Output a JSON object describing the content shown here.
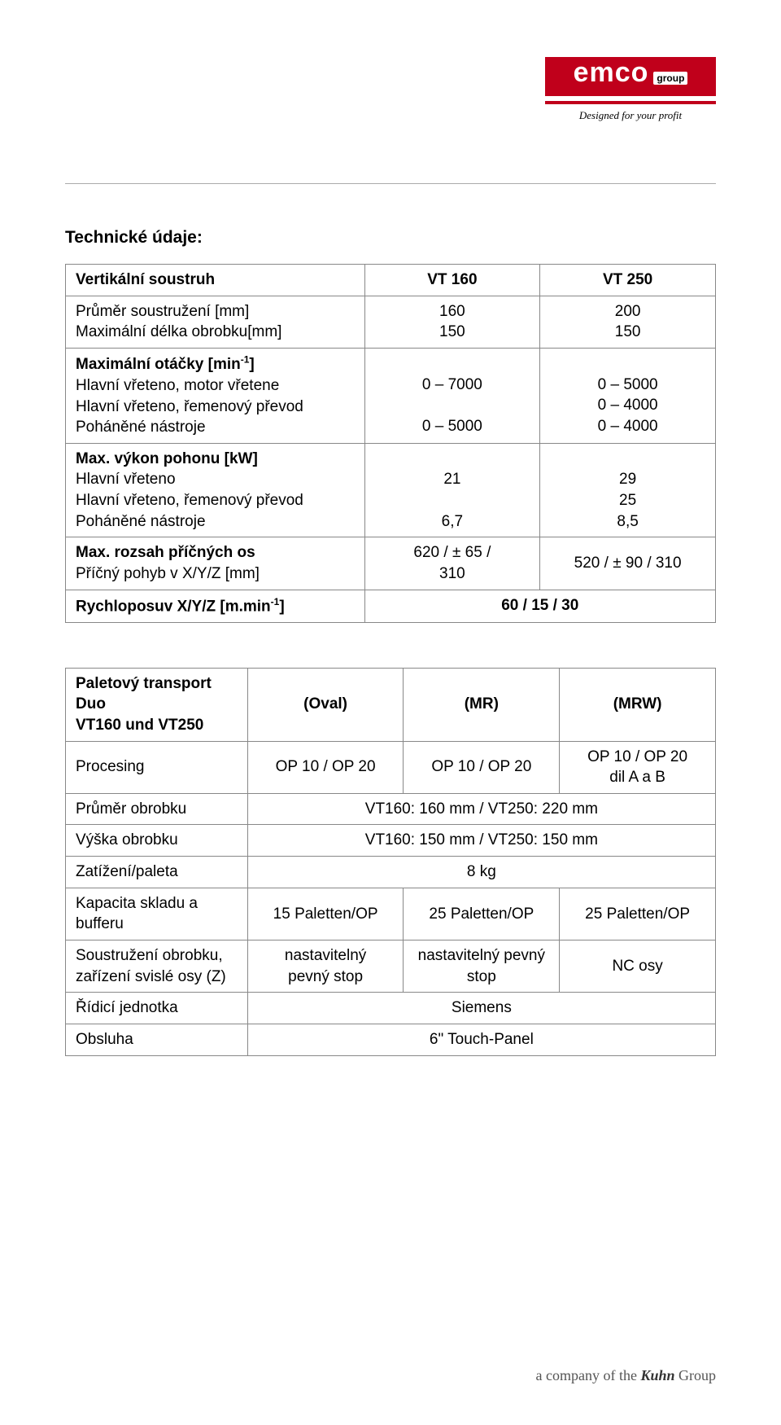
{
  "logo": {
    "brand": "emco",
    "group": "group",
    "tagline": "Designed for your profit",
    "brand_bg": "#c0001b",
    "brand_fg": "#ffffff"
  },
  "heading": "Technické údaje:",
  "table1": {
    "header": {
      "label": "Vertikální soustruh",
      "c1": "VT 160",
      "c2": "VT 250"
    },
    "r1": {
      "l1": "Průměr soustružení [mm]",
      "l2": "Maximální délka obrobku[mm]",
      "c1a": "160",
      "c1b": "150",
      "c2a": "200",
      "c2b": "150"
    },
    "r2": {
      "h": "Maximální otáčky [min",
      "hsup": "-1",
      "hend": "]",
      "l1": "Hlavní vřeteno, motor vřetene",
      "l2": "Hlavní vřeteno, řemenový převod",
      "l3": "Poháněné nástroje",
      "c1a": "0 – 7000",
      "c1b": "0 – 5000",
      "c2a": "0 – 5000",
      "c2b": "0 – 4000",
      "c2c": "0 – 4000"
    },
    "r3": {
      "h": "Max. výkon pohonu [kW]",
      "l1": "Hlavní vřeteno",
      "l2": "Hlavní vřeteno, řemenový převod",
      "l3": "Poháněné nástroje",
      "c1a": "21",
      "c1b": "6,7",
      "c2a": "29",
      "c2b": "25",
      "c2c": "8,5"
    },
    "r4": {
      "h": "Max. rozsah příčných os",
      "l1": "Příčný pohyb v X/Y/Z [mm]",
      "c1a": "620 / ± 65 /",
      "c1b": "310",
      "c2": "520 /  ± 90 / 310"
    },
    "r5": {
      "l": "Rychloposuv X/Y/Z [m.min",
      "lsup": "-1",
      "lend": "]",
      "v": "60 / 15 / 30"
    }
  },
  "table2": {
    "header": {
      "l1": "Paletový transport Duo",
      "l2": "VT160 und VT250",
      "c1": "(Oval)",
      "c2": "(MR)",
      "c3": "(MRW)"
    },
    "r1": {
      "l": "Procesing",
      "c1": "OP 10 / OP 20",
      "c2": "OP 10 / OP 20",
      "c3a": "OP 10 / OP 20",
      "c3b": "dil A a B"
    },
    "r2": {
      "l": "Průměr obrobku",
      "v": "VT160: 160 mm / VT250: 220 mm"
    },
    "r3": {
      "l": "Výška obrobku",
      "v": "VT160: 150 mm / VT250: 150 mm"
    },
    "r4": {
      "l": "Zatížení/paleta",
      "v": "8 kg"
    },
    "r5": {
      "l1": "Kapacita skladu a",
      "l2": "bufferu",
      "c1": "15 Paletten/OP",
      "c2": "25 Paletten/OP",
      "c3": "25 Paletten/OP"
    },
    "r6": {
      "l1": "Soustružení obrobku,",
      "l2": "zařízení svislé osy (Z)",
      "c1a": "nastavitelný",
      "c1b": "pevný stop",
      "c2a": "nastavitelný pevný",
      "c2b": "stop",
      "c3": "NC osy"
    },
    "r7": {
      "l": "Řídicí jednotka",
      "v": "Siemens"
    },
    "r8": {
      "l": "Obsluha",
      "v": "6\" Touch-Panel"
    }
  },
  "footer": {
    "text": "a company of the ",
    "brand": "Kuhn",
    "suffix": " Group"
  },
  "columns": {
    "t1_label_w": "46%",
    "t1_col_w": "27%",
    "t2_label_w": "28%",
    "t2_col_w": "24%"
  }
}
